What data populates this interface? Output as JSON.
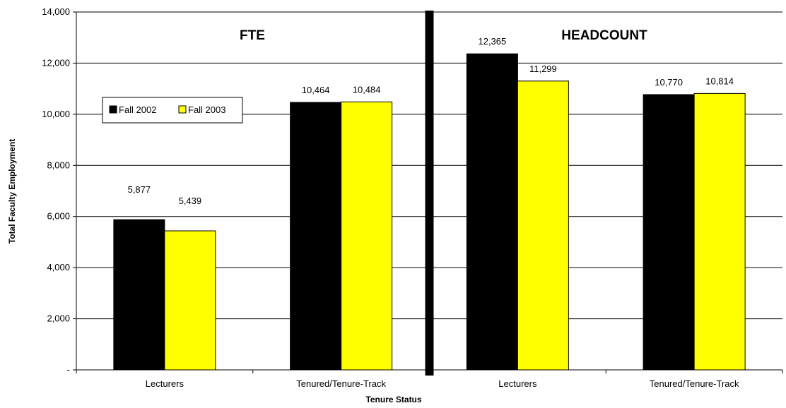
{
  "chart_data": {
    "type": "bar",
    "categories": [
      "Lecturers",
      "Tenured/Tenure-Track",
      "Lecturers",
      "Tenured/Tenure-Track"
    ],
    "panels": [
      "FTE",
      "HEADCOUNT"
    ],
    "series": [
      {
        "name": "Fall 2002",
        "color": "#000000",
        "values": [
          5877,
          10464,
          12365,
          10770
        ],
        "labels": [
          "5,877",
          "10,464",
          "12,365",
          "10,770"
        ]
      },
      {
        "name": "Fall 2003",
        "color": "#ffff00",
        "values": [
          5439,
          10484,
          11299,
          10814
        ],
        "labels": [
          "5,439",
          "10,484",
          "11,299",
          "10,814"
        ]
      }
    ],
    "xlabel": "Tenure Status",
    "ylabel": "Total Faculty Employment",
    "ylim": [
      0,
      14000
    ],
    "yticks": [
      0,
      2000,
      4000,
      6000,
      8000,
      10000,
      12000,
      14000
    ],
    "ytick_labels": [
      "-",
      "2,000",
      "4,000",
      "6,000",
      "8,000",
      "10,000",
      "12,000",
      "14,000"
    ],
    "grid": true,
    "legend_position": "left"
  }
}
